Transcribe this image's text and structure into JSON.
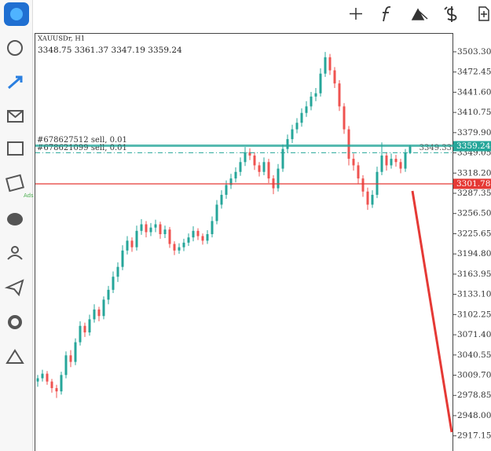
{
  "chart_data": {
    "type": "candlestick",
    "symbol": "XAUUSDr, H1",
    "ohlc_text": "3348.75 3361.37 3347.19 3359.24",
    "up_color": "#26a69a",
    "down_color": "#ef5350",
    "ylim": [
      2894,
      3532
    ],
    "yticks": [
      {
        "value": 3503.3,
        "label": "3503.30"
      },
      3472.45,
      {
        "value": 3441.6,
        "label": "3441.60"
      },
      3410.75,
      {
        "value": 3379.9,
        "label": "3379.90"
      },
      3349.05,
      {
        "value": 3318.2,
        "label": "3318.20"
      },
      3287.35,
      {
        "value": 3256.5,
        "label": "3256.50"
      },
      3225.65,
      {
        "value": 3194.8,
        "label": "3194.80"
      },
      3163.95,
      {
        "value": 3133.1,
        "label": "3133.10"
      },
      3102.25,
      {
        "value": 3071.4,
        "label": "3071.40"
      },
      3040.55,
      {
        "value": 3009.7,
        "label": "3009.70"
      },
      2978.85,
      {
        "value": 2948.0,
        "label": "2948.00"
      },
      2917.15
    ],
    "candles": [
      [
        3000,
        3010,
        2992,
        3005
      ],
      [
        3005,
        3018,
        3000,
        3012
      ],
      [
        3012,
        3016,
        2995,
        3000
      ],
      [
        3000,
        3004,
        2983,
        2990
      ],
      [
        2990,
        2995,
        2975,
        2985
      ],
      [
        2985,
        3015,
        2980,
        3010
      ],
      [
        3010,
        3046,
        3005,
        3040
      ],
      [
        3040,
        3048,
        3022,
        3030
      ],
      [
        3030,
        3066,
        3025,
        3060
      ],
      [
        3060,
        3092,
        3055,
        3085
      ],
      [
        3085,
        3090,
        3068,
        3075
      ],
      [
        3075,
        3102,
        3070,
        3095
      ],
      [
        3095,
        3118,
        3090,
        3110
      ],
      [
        3110,
        3114,
        3092,
        3100
      ],
      [
        3100,
        3130,
        3095,
        3125
      ],
      [
        3125,
        3146,
        3118,
        3140
      ],
      [
        3140,
        3168,
        3135,
        3160
      ],
      [
        3160,
        3182,
        3152,
        3175
      ],
      [
        3175,
        3208,
        3170,
        3200
      ],
      [
        3200,
        3222,
        3194,
        3215
      ],
      [
        3215,
        3220,
        3198,
        3205
      ],
      [
        3205,
        3238,
        3200,
        3230
      ],
      [
        3230,
        3248,
        3224,
        3240
      ],
      [
        3240,
        3245,
        3220,
        3228
      ],
      [
        3228,
        3242,
        3222,
        3235
      ],
      [
        3235,
        3247,
        3228,
        3240
      ],
      [
        3240,
        3244,
        3218,
        3225
      ],
      [
        3225,
        3238,
        3219,
        3232
      ],
      [
        3232,
        3236,
        3204,
        3210
      ],
      [
        3210,
        3214,
        3193,
        3200
      ],
      [
        3200,
        3211,
        3195,
        3205
      ],
      [
        3205,
        3218,
        3199,
        3212
      ],
      [
        3212,
        3226,
        3207,
        3220
      ],
      [
        3220,
        3237,
        3214,
        3230
      ],
      [
        3230,
        3234,
        3216,
        3222
      ],
      [
        3222,
        3226,
        3209,
        3215
      ],
      [
        3215,
        3231,
        3210,
        3225
      ],
      [
        3225,
        3252,
        3220,
        3245
      ],
      [
        3245,
        3277,
        3240,
        3270
      ],
      [
        3270,
        3292,
        3264,
        3285
      ],
      [
        3285,
        3307,
        3279,
        3300
      ],
      [
        3300,
        3317,
        3294,
        3310
      ],
      [
        3310,
        3327,
        3304,
        3320
      ],
      [
        3320,
        3342,
        3314,
        3335
      ],
      [
        3335,
        3358,
        3329,
        3350
      ],
      [
        3350,
        3356,
        3338,
        3345
      ],
      [
        3345,
        3350,
        3323,
        3330
      ],
      [
        3330,
        3335,
        3313,
        3320
      ],
      [
        3320,
        3342,
        3315,
        3335
      ],
      [
        3335,
        3340,
        3303,
        3310
      ],
      [
        3310,
        3315,
        3286,
        3295
      ],
      [
        3295,
        3332,
        3290,
        3325
      ],
      [
        3325,
        3362,
        3320,
        3355
      ],
      [
        3355,
        3377,
        3349,
        3370
      ],
      [
        3370,
        3392,
        3364,
        3385
      ],
      [
        3385,
        3402,
        3379,
        3395
      ],
      [
        3395,
        3417,
        3389,
        3410
      ],
      [
        3410,
        3428,
        3404,
        3420
      ],
      [
        3420,
        3442,
        3414,
        3435
      ],
      [
        3435,
        3448,
        3428,
        3440
      ],
      [
        3440,
        3478,
        3435,
        3470
      ],
      [
        3470,
        3503,
        3465,
        3495
      ],
      [
        3495,
        3500,
        3468,
        3475
      ],
      [
        3475,
        3480,
        3448,
        3455
      ],
      [
        3455,
        3460,
        3413,
        3420
      ],
      [
        3420,
        3425,
        3378,
        3385
      ],
      [
        3385,
        3390,
        3330,
        3340
      ],
      [
        3340,
        3348,
        3322,
        3330
      ],
      [
        3330,
        3335,
        3302,
        3310
      ],
      [
        3310,
        3315,
        3282,
        3290
      ],
      [
        3290,
        3296,
        3262,
        3270
      ],
      [
        3270,
        3292,
        3265,
        3285
      ],
      [
        3285,
        3328,
        3280,
        3320
      ],
      [
        3320,
        3365,
        3315,
        3345
      ],
      [
        3345,
        3350,
        3322,
        3330
      ],
      [
        3330,
        3348,
        3325,
        3340
      ],
      [
        3340,
        3346,
        3328,
        3335
      ],
      [
        3335,
        3340,
        3318,
        3325
      ],
      [
        3325,
        3355,
        3320,
        3348.75
      ],
      [
        3348.75,
        3361.37,
        3347.19,
        3359.24
      ]
    ],
    "price_lines": [
      {
        "value": 3359.24,
        "color": "#26a69a"
      },
      {
        "value": 3301.78,
        "color": "#e53935"
      }
    ],
    "orders": [
      {
        "label": "#678627512 sell, 0.01",
        "value": 3361
      },
      {
        "label": "#678621099 sell, 0.01",
        "value": 3349.33
      }
    ]
  },
  "sidebar": {
    "ads_label": "Ads"
  }
}
